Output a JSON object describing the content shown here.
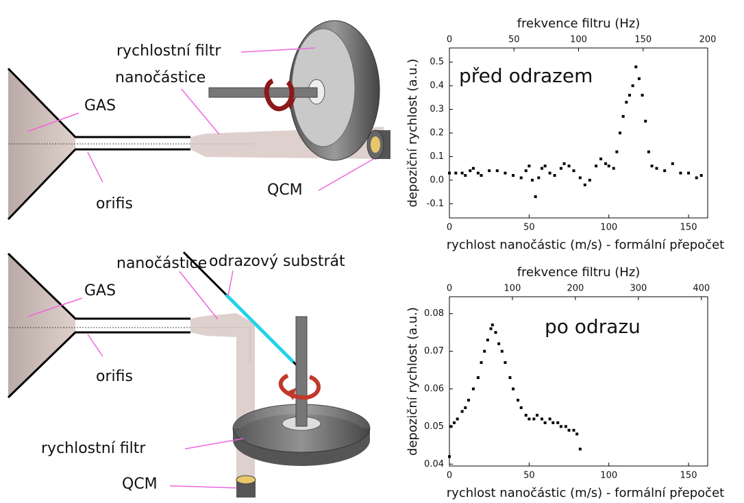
{
  "diagrams": [
    {
      "labels": [
        "rychlostní filtr",
        "nanočástice",
        "GAS",
        "orifis",
        "QCM"
      ]
    },
    {
      "labels": [
        "nanočástice",
        "odrazový substrát",
        "GAS",
        "orifis",
        "rychlostní filtr",
        "QCM"
      ]
    }
  ],
  "chart_data": [
    {
      "type": "scatter",
      "annotation": "před odrazem",
      "xlabel": "rychlost nanočástic (m/s) - formální přepočet",
      "x2label": "frekvence filtru (Hz)",
      "ylabel": "depoziční rychlost (a.u.)",
      "xlim": [
        0,
        162
      ],
      "xticks": [
        0,
        50,
        100,
        150
      ],
      "x2lim": [
        0,
        200
      ],
      "x2ticks": [
        0,
        50,
        100,
        150,
        200
      ],
      "ylim": [
        -0.16,
        0.56
      ],
      "yticks": [
        -0.1,
        {
          "value": 0,
          "label": "0.0"
        },
        0.1,
        0.2,
        0.3,
        0.4,
        0.5
      ],
      "series": [
        {
          "color": "#000000",
          "x": [
            0,
            4,
            8,
            10,
            13,
            15,
            18,
            20,
            25,
            30,
            35,
            40,
            45,
            48,
            50,
            52,
            54,
            56,
            58,
            60,
            63,
            66,
            70,
            72,
            75,
            78,
            82,
            85,
            88,
            92,
            95,
            98,
            100,
            103,
            105,
            107,
            109,
            111,
            113,
            115,
            117,
            119,
            121,
            123,
            125,
            127,
            130,
            135,
            140,
            145,
            150,
            155,
            158
          ],
          "values": [
            0.03,
            0.03,
            0.03,
            0.02,
            0.04,
            0.05,
            0.03,
            0.02,
            0.04,
            0.04,
            0.03,
            0.02,
            0.01,
            0.04,
            0.06,
            0.0,
            -0.07,
            0.01,
            0.05,
            0.06,
            0.03,
            0.02,
            0.05,
            0.07,
            0.06,
            0.04,
            0.01,
            -0.02,
            0.0,
            0.06,
            0.09,
            0.07,
            0.06,
            0.05,
            0.12,
            0.2,
            0.27,
            0.33,
            0.36,
            0.4,
            0.48,
            0.43,
            0.36,
            0.25,
            0.12,
            0.06,
            0.05,
            0.04,
            0.07,
            0.03,
            0.03,
            0.01,
            0.02
          ]
        }
      ]
    },
    {
      "type": "scatter",
      "annotation": "po odrazu",
      "xlabel": "rychlost nanočástic (m/s) - formální přepočet",
      "x2label": "frekvence filtru (Hz)",
      "ylabel": "depoziční rychlost (a.u.)",
      "xlim": [
        0,
        162
      ],
      "xticks": [
        0,
        50,
        100,
        150
      ],
      "x2lim": [
        0,
        410
      ],
      "x2ticks": [
        0,
        100,
        200,
        300,
        400
      ],
      "ylim": [
        0.0395,
        0.0845
      ],
      "yticks": [
        0.04,
        0.05,
        0.06,
        0.07,
        0.08
      ],
      "series": [
        {
          "color": "#000000",
          "x": [
            0,
            1,
            3,
            5,
            8,
            10,
            12,
            15,
            18,
            20,
            22,
            24,
            26,
            27,
            29,
            31,
            33,
            35,
            38,
            40,
            43,
            45,
            48,
            50,
            53,
            55,
            58,
            60,
            63,
            65,
            68,
            70,
            73,
            75,
            78,
            80,
            82
          ],
          "values": [
            0.042,
            0.05,
            0.051,
            0.052,
            0.054,
            0.055,
            0.057,
            0.06,
            0.063,
            0.067,
            0.07,
            0.073,
            0.076,
            0.077,
            0.075,
            0.072,
            0.07,
            0.067,
            0.063,
            0.06,
            0.057,
            0.055,
            0.053,
            0.052,
            0.052,
            0.053,
            0.052,
            0.051,
            0.052,
            0.051,
            0.051,
            0.05,
            0.05,
            0.049,
            0.049,
            0.048,
            0.044
          ]
        }
      ]
    }
  ]
}
